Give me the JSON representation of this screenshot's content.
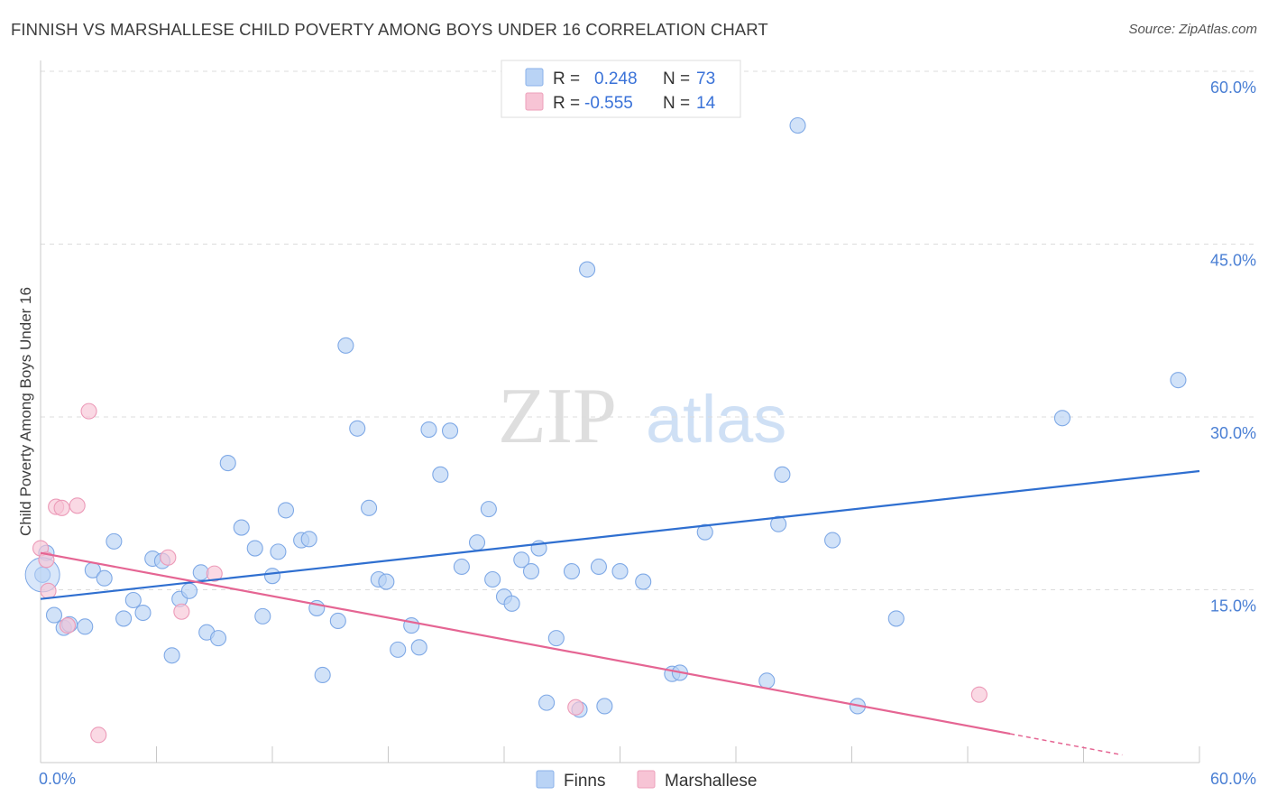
{
  "header": {
    "title": "FINNISH VS MARSHALLESE CHILD POVERTY AMONG BOYS UNDER 16 CORRELATION CHART",
    "source": "Source: ZipAtlas.com"
  },
  "watermark": {
    "zip": "ZIP",
    "atlas": "atlas"
  },
  "legend": {
    "rows": [
      {
        "r_label": "R =",
        "r_value": "0.248",
        "n_label": "N =",
        "n_value": "73",
        "color": "#9fc2f2"
      },
      {
        "r_label": "R =",
        "r_value": "-0.555",
        "n_label": "N =",
        "n_value": "14",
        "color": "#f4b3c8"
      }
    ]
  },
  "bottom_legend": [
    {
      "label": "Finns",
      "color": "#9fc2f2"
    },
    {
      "label": "Marshallese",
      "color": "#f4b3c8"
    }
  ],
  "chart_data": {
    "type": "scatter",
    "title": "FINNISH VS MARSHALLESE CHILD POVERTY AMONG BOYS UNDER 16 CORRELATION CHART",
    "xlabel": "",
    "ylabel": "Child Poverty Among Boys Under 16",
    "xlim": [
      0,
      60
    ],
    "ylim": [
      0,
      60
    ],
    "x_tick_labels": [
      "0.0%",
      "60.0%"
    ],
    "y_tick_labels": [
      "15.0%",
      "30.0%",
      "45.0%",
      "60.0%"
    ],
    "y_ticks": [
      15,
      30,
      45,
      60
    ],
    "grid": "horizontal dashed",
    "legend_position": "top-center",
    "colors": {
      "finns": "#4a86d8",
      "finns_fill": "#b9d3f5",
      "marshallese": "#e56593",
      "marshallese_fill": "#f7c4d5"
    },
    "series": [
      {
        "name": "Finns",
        "r": 0.248,
        "n": 73,
        "trend": {
          "x": [
            0,
            60
          ],
          "y": [
            14.2,
            25.3
          ]
        },
        "points": [
          [
            0.1,
            16.3
          ],
          [
            0.7,
            12.8
          ],
          [
            1.2,
            11.7
          ],
          [
            1.5,
            12.0
          ],
          [
            2.3,
            11.8
          ],
          [
            2.7,
            16.7
          ],
          [
            3.3,
            16.0
          ],
          [
            3.8,
            19.2
          ],
          [
            4.3,
            12.5
          ],
          [
            4.8,
            14.1
          ],
          [
            5.3,
            13.0
          ],
          [
            5.8,
            17.7
          ],
          [
            6.3,
            17.5
          ],
          [
            6.8,
            9.3
          ],
          [
            7.2,
            14.2
          ],
          [
            7.7,
            14.9
          ],
          [
            8.3,
            16.5
          ],
          [
            8.6,
            11.3
          ],
          [
            9.2,
            10.8
          ],
          [
            9.7,
            26.0
          ],
          [
            10.4,
            20.4
          ],
          [
            11.1,
            18.6
          ],
          [
            11.5,
            12.7
          ],
          [
            12.0,
            16.2
          ],
          [
            12.3,
            18.3
          ],
          [
            12.7,
            21.9
          ],
          [
            13.5,
            19.3
          ],
          [
            13.9,
            19.4
          ],
          [
            14.3,
            13.4
          ],
          [
            14.6,
            7.6
          ],
          [
            15.4,
            12.3
          ],
          [
            15.8,
            36.2
          ],
          [
            16.4,
            29.0
          ],
          [
            17.0,
            22.1
          ],
          [
            17.5,
            15.9
          ],
          [
            17.9,
            15.7
          ],
          [
            18.5,
            9.8
          ],
          [
            19.2,
            11.9
          ],
          [
            19.6,
            10.0
          ],
          [
            20.1,
            28.9
          ],
          [
            20.7,
            25.0
          ],
          [
            21.2,
            28.8
          ],
          [
            21.8,
            17.0
          ],
          [
            22.6,
            19.1
          ],
          [
            23.2,
            22.0
          ],
          [
            23.4,
            15.9
          ],
          [
            24.0,
            14.4
          ],
          [
            24.4,
            13.8
          ],
          [
            24.9,
            17.6
          ],
          [
            25.4,
            16.6
          ],
          [
            25.8,
            18.6
          ],
          [
            26.2,
            5.2
          ],
          [
            26.7,
            10.8
          ],
          [
            27.5,
            16.6
          ],
          [
            27.9,
            4.6
          ],
          [
            28.3,
            42.8
          ],
          [
            28.9,
            17.0
          ],
          [
            29.2,
            4.9
          ],
          [
            30.0,
            16.6
          ],
          [
            31.2,
            15.7
          ],
          [
            32.7,
            7.7
          ],
          [
            33.1,
            7.8
          ],
          [
            34.4,
            20.0
          ],
          [
            37.6,
            7.1
          ],
          [
            38.2,
            20.7
          ],
          [
            38.4,
            25.0
          ],
          [
            39.2,
            55.3
          ],
          [
            41.0,
            19.3
          ],
          [
            42.3,
            4.9
          ],
          [
            44.3,
            12.5
          ],
          [
            52.9,
            29.9
          ],
          [
            58.9,
            33.2
          ],
          [
            0.3,
            18.2
          ]
        ]
      },
      {
        "name": "Marshallese",
        "r": -0.555,
        "n": 14,
        "trend": {
          "x": [
            0,
            50.2
          ],
          "y": [
            18.2,
            2.5
          ],
          "dashed_extension": {
            "x": [
              50.2,
              60
            ],
            "y": [
              2.5,
              -0.6
            ]
          }
        },
        "points": [
          [
            0.0,
            18.6
          ],
          [
            0.3,
            17.6
          ],
          [
            0.4,
            14.9
          ],
          [
            0.8,
            22.2
          ],
          [
            1.1,
            22.1
          ],
          [
            1.4,
            11.9
          ],
          [
            1.9,
            22.3
          ],
          [
            2.5,
            30.5
          ],
          [
            3.0,
            2.4
          ],
          [
            6.6,
            17.8
          ],
          [
            7.3,
            13.1
          ],
          [
            9.0,
            16.4
          ],
          [
            27.7,
            4.8
          ],
          [
            48.6,
            5.9
          ]
        ]
      }
    ]
  }
}
